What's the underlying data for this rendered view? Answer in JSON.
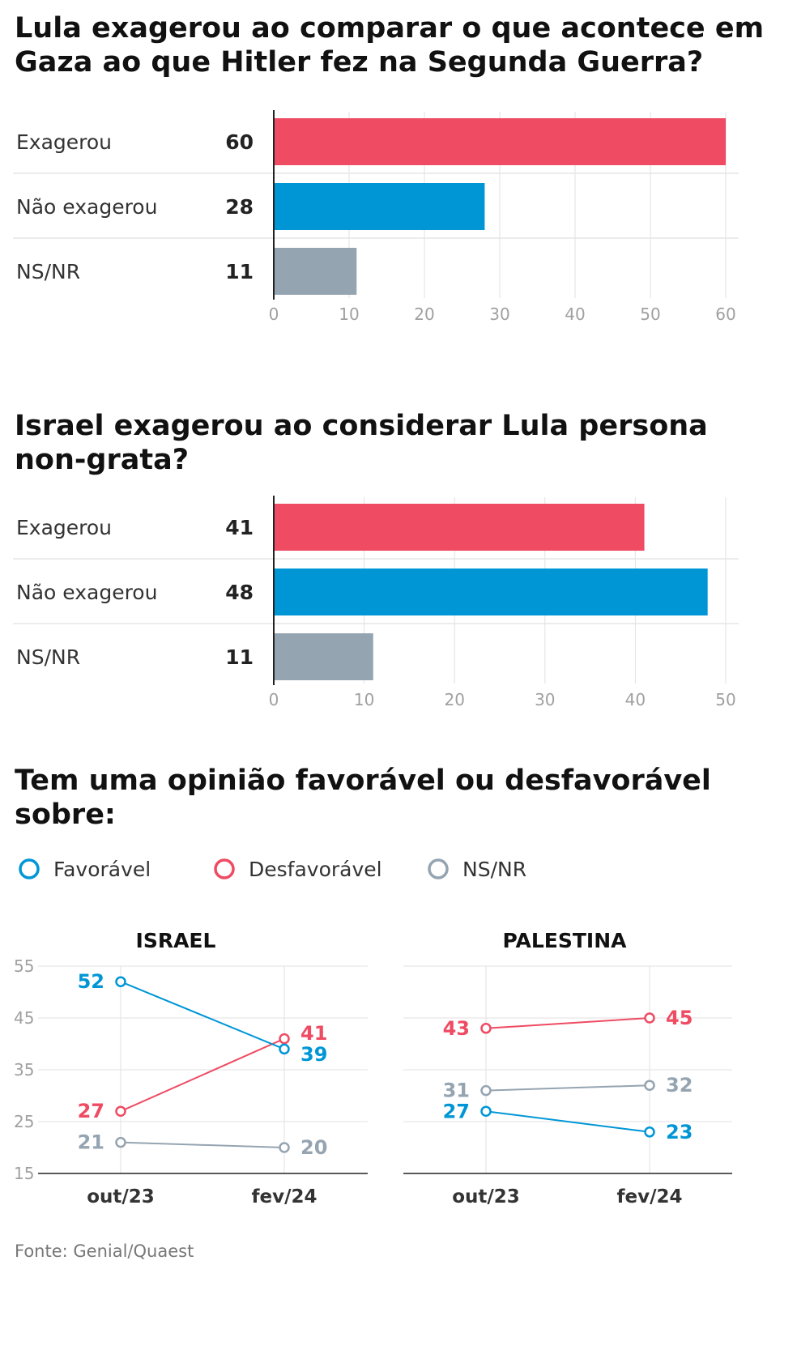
{
  "colors": {
    "red": "#ef4b63",
    "blue": "#0096d6",
    "gray": "#95a4b1",
    "grid": "#e2e2e2",
    "axis": "#222222"
  },
  "source": "Fonte: Genial/Quaest",
  "chart_data": [
    {
      "type": "bar",
      "orientation": "horizontal",
      "title": [
        "Lula exagerou ao comparar o que acontece em",
        "Gaza ao que Hitler fez na Segunda Guerra?"
      ],
      "categories": [
        "Exagerou",
        "Não exagerou",
        "NS/NR"
      ],
      "values": [
        60,
        28,
        11
      ],
      "bar_colors": [
        "red",
        "blue",
        "gray"
      ],
      "xlim": [
        0,
        60
      ],
      "ticks": [
        "0",
        "10",
        "20",
        "30",
        "40",
        "50",
        "60"
      ],
      "grid": true
    },
    {
      "type": "bar",
      "orientation": "horizontal",
      "title": [
        "Israel exagerou ao considerar Lula persona",
        "non-grata?"
      ],
      "categories": [
        "Exagerou",
        "Não exagerou",
        "NS/NR"
      ],
      "values": [
        41,
        48,
        11
      ],
      "bar_colors": [
        "red",
        "blue",
        "gray"
      ],
      "xlim": [
        0,
        50
      ],
      "ticks": [
        "0",
        "10",
        "20",
        "30",
        "40",
        "50"
      ],
      "grid": true
    },
    {
      "type": "line",
      "title": [
        "Tem uma opinião favorável ou desfavorável",
        "sobre:"
      ],
      "legend": [
        {
          "name": "Favorável",
          "color": "blue"
        },
        {
          "name": "Desfavorável",
          "color": "red"
        },
        {
          "name": "NS/NR",
          "color": "gray"
        }
      ],
      "x": [
        "out/23",
        "fev/24"
      ],
      "ylim": [
        15,
        55
      ],
      "yticks": [
        "55",
        "45",
        "35",
        "25",
        "15"
      ],
      "panels": [
        {
          "title": "ISRAEL",
          "series": [
            {
              "name": "Favorável",
              "color": "blue",
              "values": [
                52,
                39
              ]
            },
            {
              "name": "Desfavorável",
              "color": "red",
              "values": [
                27,
                41
              ]
            },
            {
              "name": "NS/NR",
              "color": "gray",
              "values": [
                21,
                20
              ]
            }
          ]
        },
        {
          "title": "PALESTINA",
          "series": [
            {
              "name": "Favorável",
              "color": "blue",
              "values": [
                27,
                23
              ]
            },
            {
              "name": "Desfavorável",
              "color": "red",
              "values": [
                43,
                45
              ]
            },
            {
              "name": "NS/NR",
              "color": "gray",
              "values": [
                31,
                32
              ]
            }
          ]
        }
      ]
    }
  ]
}
